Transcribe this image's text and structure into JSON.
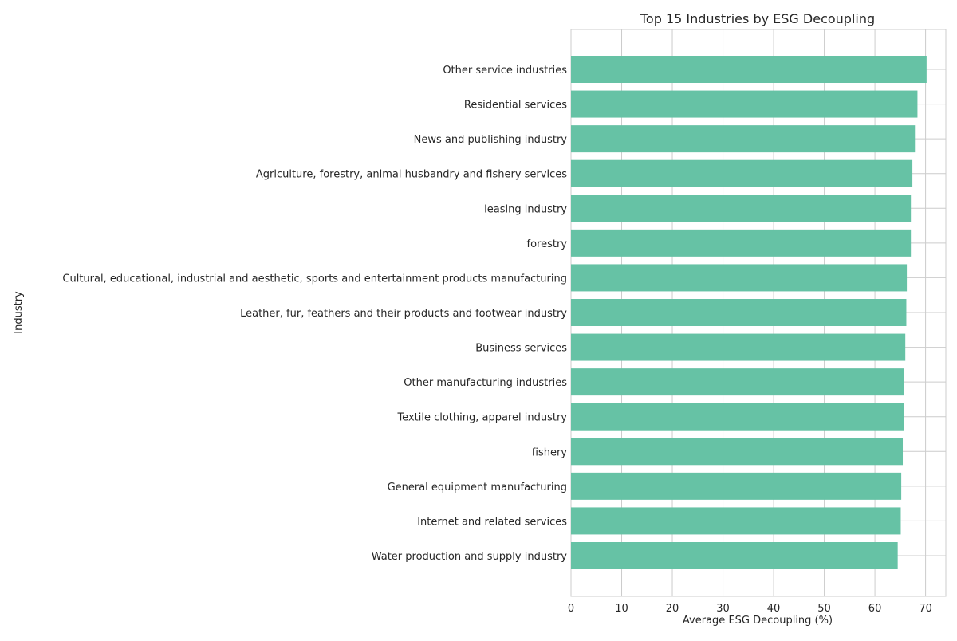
{
  "chart_data": {
    "type": "bar",
    "orientation": "horizontal",
    "title": "Top 15 Industries by ESG Decoupling",
    "xlabel": "Average ESG Decoupling (%)",
    "ylabel": "Industry",
    "xlim": [
      0,
      74
    ],
    "xticks": [
      0,
      10,
      20,
      30,
      40,
      50,
      60,
      70
    ],
    "grid": true,
    "bar_color": "#66c2a5",
    "categories": [
      "Other service industries",
      "Residential services",
      "News and publishing industry",
      "Agriculture, forestry, animal husbandry and fishery services",
      "leasing industry",
      "forestry",
      "Cultural, educational, industrial and aesthetic, sports and entertainment products manufacturing",
      "Leather, fur, feathers and their products and footwear industry",
      "Business services",
      "Other manufacturing industries",
      "Textile clothing, apparel industry",
      "fishery",
      "General equipment manufacturing",
      "Internet and related services",
      "Water production and supply industry"
    ],
    "values": [
      70.2,
      68.4,
      67.9,
      67.4,
      67.1,
      67.1,
      66.3,
      66.2,
      66.0,
      65.8,
      65.7,
      65.5,
      65.2,
      65.1,
      64.5
    ]
  }
}
